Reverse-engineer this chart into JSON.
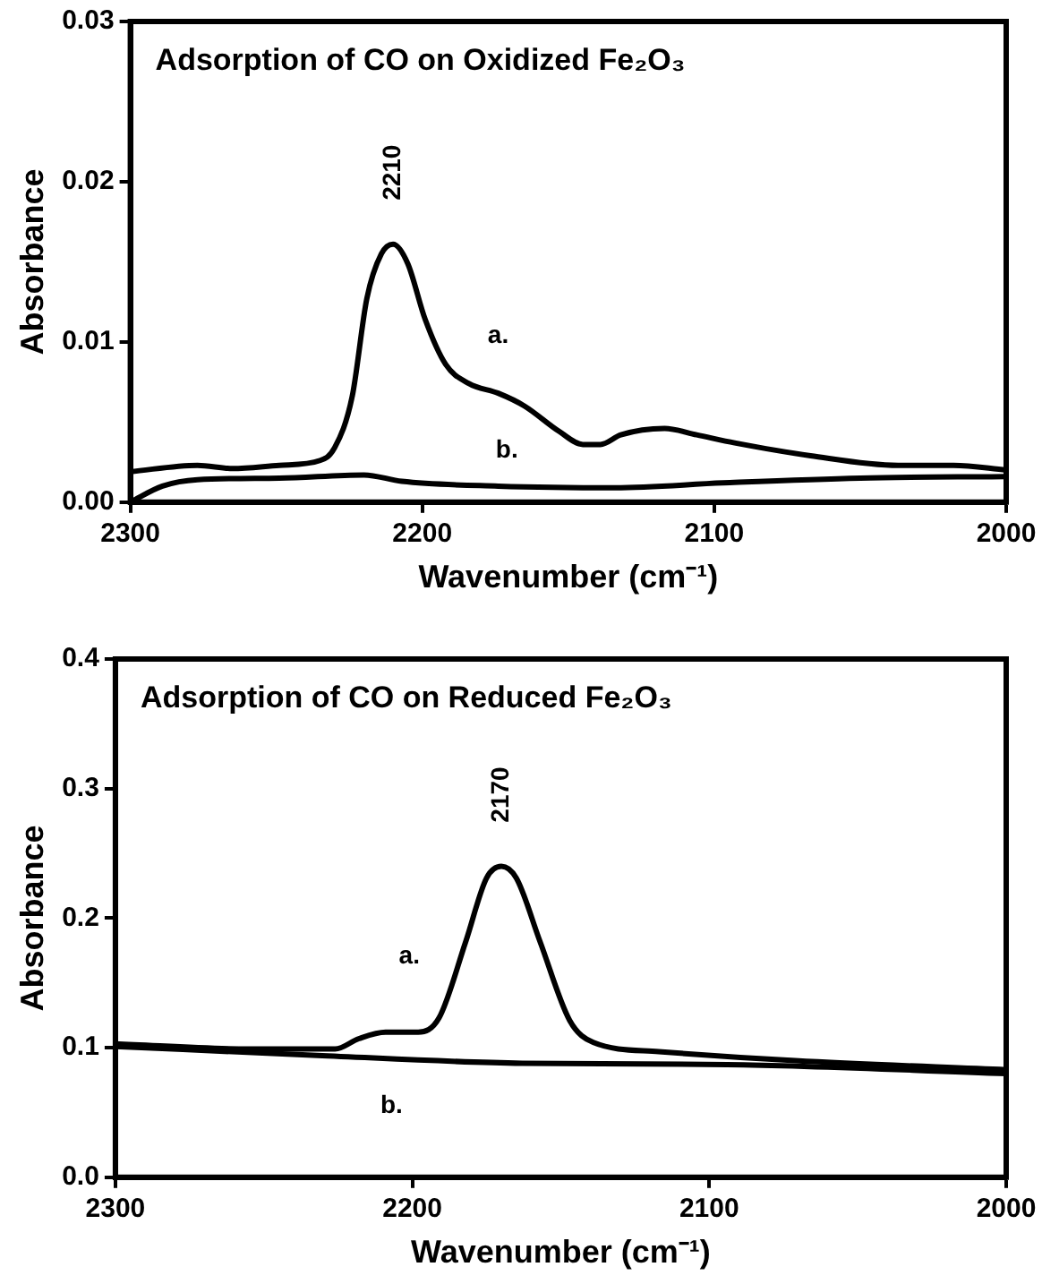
{
  "chart_data": [
    {
      "type": "line",
      "title": "Adsorption of CO on Oxidized Fe₂O₃",
      "xlabel": "Wavenumber (cm⁻¹)",
      "ylabel": "Absorbance",
      "xlim": [
        2300,
        2000
      ],
      "xticks": [
        2300,
        2200,
        2100,
        2000
      ],
      "ylim": [
        0,
        0.03
      ],
      "yticks": [
        {
          "value": 0,
          "label": "0.00"
        },
        {
          "value": 0.01,
          "label": "0.01"
        },
        {
          "value": 0.02,
          "label": "0.02"
        },
        {
          "value": 0.03,
          "label": "0.03"
        }
      ],
      "grid": false,
      "legend": false,
      "marker": "none",
      "line_style": "solid",
      "annotations": [
        {
          "text": "2210",
          "x": 2210,
          "y": 0.0161
        }
      ],
      "series": [
        {
          "name": "a.",
          "color": "#000000",
          "x": [
            2300,
            2277,
            2265,
            2249,
            2235,
            2230,
            2224,
            2219,
            2214,
            2210,
            2205,
            2199,
            2192,
            2184,
            2174,
            2165,
            2153,
            2145,
            2139,
            2132,
            2117,
            2106,
            2093,
            2067,
            2037,
            2018,
            2000
          ],
          "values": [
            0.0019,
            0.0023,
            0.0021,
            0.0023,
            0.0026,
            0.0034,
            0.0066,
            0.0127,
            0.0155,
            0.0161,
            0.0149,
            0.0114,
            0.0086,
            0.0074,
            0.0068,
            0.006,
            0.0044,
            0.0036,
            0.0036,
            0.0042,
            0.0046,
            0.0042,
            0.0037,
            0.0029,
            0.0023,
            0.0023,
            0.002
          ]
        },
        {
          "name": "b.",
          "color": "#000000",
          "x": [
            2300,
            2289,
            2277,
            2249,
            2220,
            2207,
            2174,
            2134,
            2097,
            2050,
            2000
          ],
          "values": [
            0,
            0.001,
            0.0014,
            0.0015,
            0.0017,
            0.0013,
            0.001,
            0.0009,
            0.0012,
            0.0015,
            0.0016
          ]
        }
      ]
    },
    {
      "type": "line",
      "title": "Adsorption of CO on Reduced Fe₂O₃",
      "xlabel": "Wavenumber (cm⁻¹)",
      "ylabel": "Absorbance",
      "xlim": [
        2300,
        2000
      ],
      "xticks": [
        2300,
        2200,
        2100,
        2000
      ],
      "ylim": [
        0,
        0.4
      ],
      "yticks": [
        {
          "value": 0,
          "label": "0.0"
        },
        {
          "value": 0.1,
          "label": "0.1"
        },
        {
          "value": 0.2,
          "label": "0.2"
        },
        {
          "value": 0.3,
          "label": "0.3"
        },
        {
          "value": 0.4,
          "label": "0.4"
        }
      ],
      "grid": false,
      "legend": false,
      "marker": "none",
      "line_style": "solid",
      "annotations": [
        {
          "text": "2170",
          "x": 2170,
          "y": 0.24
        }
      ],
      "series": [
        {
          "name": "a.",
          "color": "#000000",
          "x": [
            2300,
            2255,
            2226,
            2218,
            2209,
            2198,
            2191,
            2182,
            2175,
            2170,
            2165,
            2157,
            2147,
            2139,
            2117,
            2071,
            2000
          ],
          "values": [
            0.103,
            0.099,
            0.099,
            0.107,
            0.112,
            0.112,
            0.123,
            0.182,
            0.231,
            0.24,
            0.231,
            0.182,
            0.121,
            0.104,
            0.097,
            0.09,
            0.083
          ]
        },
        {
          "name": "b.",
          "color": "#000000",
          "x": [
            2300,
            2232,
            2163,
            2094,
            2000
          ],
          "values": [
            0.101,
            0.094,
            0.088,
            0.087,
            0.08
          ]
        }
      ]
    }
  ]
}
